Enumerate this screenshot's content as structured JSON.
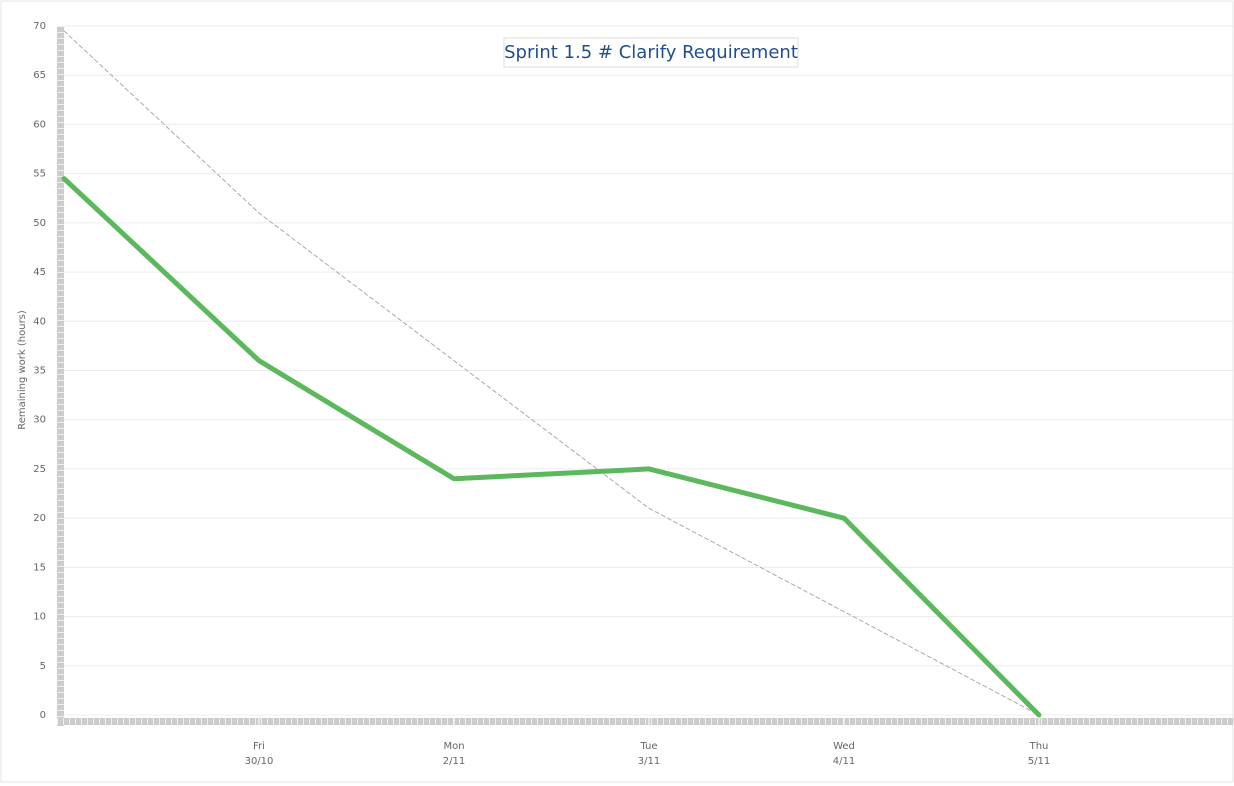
{
  "chart_data": {
    "type": "line",
    "title": "Sprint 1.5 # Clarify Requirement",
    "y_label": "Remaining work (hours)",
    "categories": [
      null,
      [
        "Fri",
        "30/10"
      ],
      [
        "Mon",
        "2/11"
      ],
      [
        "Tue",
        "3/11"
      ],
      [
        "Wed",
        "4/11"
      ],
      [
        "Thu",
        "5/11"
      ]
    ],
    "series": [
      {
        "color": "#aaaaaa",
        "dashed": true,
        "values": [
          69.5,
          51,
          36,
          21,
          10.5,
          0
        ]
      },
      {
        "color": "#5cb85c",
        "values": [
          54.5,
          36,
          24,
          25,
          20,
          0
        ]
      }
    ],
    "ylim": [
      0,
      70
    ],
    "yticks": [
      0,
      5,
      10,
      15,
      20,
      25,
      30,
      35,
      40,
      45,
      50,
      55,
      60,
      65,
      70
    ],
    "grid": true
  }
}
